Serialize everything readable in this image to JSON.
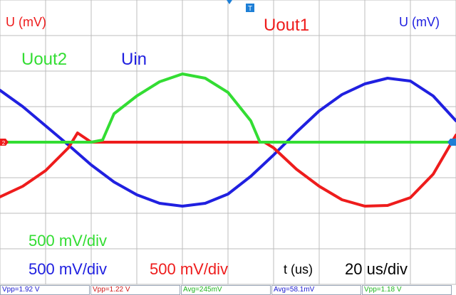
{
  "labels": {
    "y_left": "U (mV)",
    "y_right": "U (mV)",
    "uout1": "Uout1",
    "uout2": "Uout2",
    "uin": "Uin",
    "scale_green": "500 mV/div",
    "scale_blue": "500 mV/div",
    "scale_red": "500 mV/div",
    "x_axis": "t (us)",
    "timebase": "20 us/div"
  },
  "markers": {
    "trigger": "T",
    "ch2_ref": "2"
  },
  "measurements": [
    {
      "text": "Vpp=1.92 V",
      "color": "#1a1ad0"
    },
    {
      "text": "Vpp=1.22 V",
      "color": "#d01a1a"
    },
    {
      "text": "Avg=245mV",
      "color": "#1fb51f"
    },
    {
      "text": "Avg=58.1mV",
      "color": "#1a1ad0"
    },
    {
      "text": "Vpp=1.18 V",
      "color": "#1fb51f"
    }
  ],
  "colors": {
    "uin": "#2020e0",
    "uout1": "#ee1c1c",
    "uout2": "#33dd33",
    "grid": "#bcbcbc",
    "trigger_marker": "#1e7fd6"
  },
  "chart_data": {
    "type": "line",
    "xlabel": "t (us)",
    "ylabel": "U (mV)",
    "x_divisions": 10,
    "y_divisions": 8,
    "time_per_div_us": 20,
    "volts_per_div_mV": 500,
    "xlim": [
      0,
      200
    ],
    "ylim": [
      -2000,
      2000
    ],
    "series": [
      {
        "name": "Uin",
        "color": "#2020e0",
        "x": [
          0,
          10,
          20,
          30,
          40,
          50,
          60,
          70,
          80,
          90,
          100,
          110,
          120,
          130,
          140,
          150,
          160,
          170,
          180,
          190,
          200
        ],
        "y": [
          730,
          500,
          230,
          -40,
          -320,
          -560,
          -740,
          -860,
          -900,
          -860,
          -730,
          -480,
          -180,
          140,
          440,
          670,
          820,
          900,
          860,
          650,
          300
        ]
      },
      {
        "name": "Uout1",
        "color": "#ee1c1c",
        "x": [
          0,
          10,
          20,
          30,
          34,
          40,
          60,
          80,
          100,
          116,
          120,
          130,
          140,
          150,
          160,
          170,
          180,
          190,
          200
        ],
        "y": [
          -770,
          -620,
          -400,
          -80,
          130,
          0,
          0,
          0,
          0,
          0,
          -80,
          -380,
          -620,
          -810,
          -900,
          -890,
          -780,
          -450,
          100
        ]
      },
      {
        "name": "Uout2",
        "color": "#33dd33",
        "x": [
          0,
          20,
          40,
          45,
          50,
          60,
          70,
          80,
          90,
          100,
          110,
          114,
          120,
          140,
          160,
          180,
          200
        ],
        "y": [
          0,
          0,
          0,
          30,
          400,
          650,
          850,
          960,
          900,
          700,
          300,
          0,
          0,
          0,
          0,
          0,
          0
        ]
      }
    ]
  }
}
